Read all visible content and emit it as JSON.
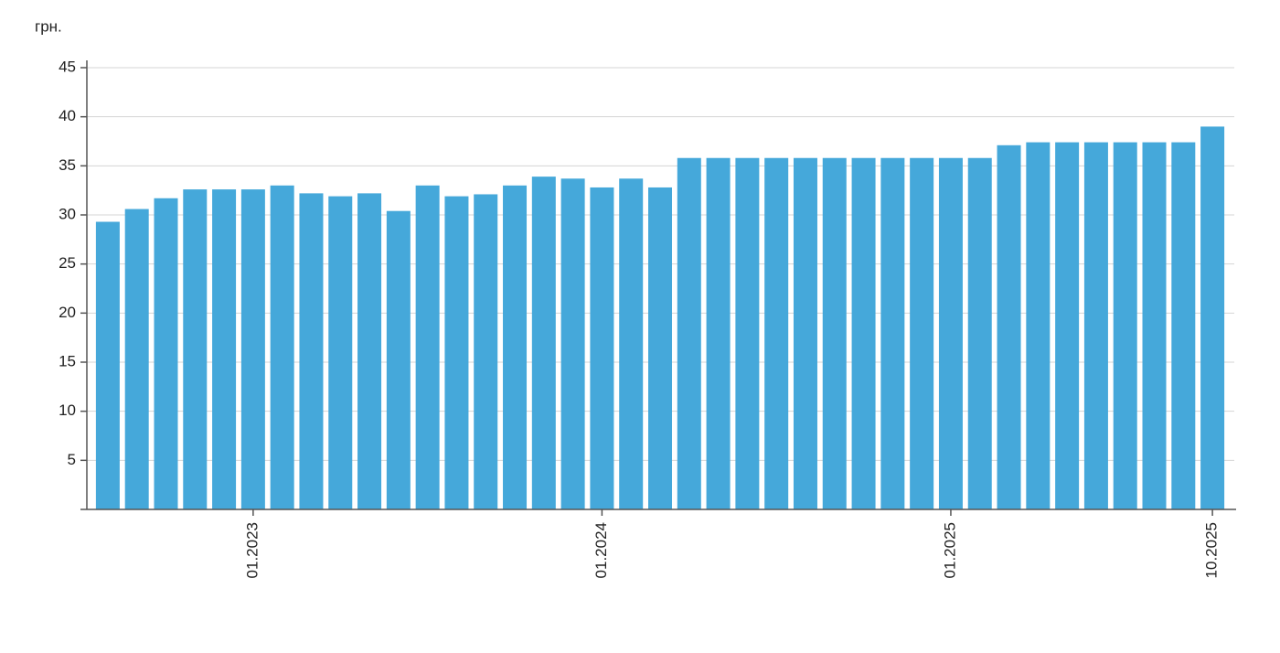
{
  "chart_data": {
    "type": "bar",
    "y_label": "грн.",
    "categories": [
      null,
      null,
      null,
      null,
      null,
      "01.2023",
      null,
      null,
      null,
      null,
      null,
      null,
      null,
      null,
      null,
      null,
      null,
      "01.2024",
      null,
      null,
      null,
      null,
      null,
      null,
      null,
      null,
      null,
      null,
      null,
      "01.2025",
      null,
      null,
      null,
      null,
      null,
      null,
      null,
      null,
      "10.2025"
    ],
    "values": [
      29.3,
      30.6,
      31.7,
      32.6,
      32.6,
      32.6,
      33.0,
      32.2,
      31.9,
      32.2,
      30.4,
      33.0,
      31.9,
      32.1,
      33.0,
      33.9,
      33.7,
      32.8,
      33.7,
      32.8,
      35.8,
      35.8,
      35.8,
      35.8,
      35.8,
      35.8,
      35.8,
      35.8,
      35.8,
      35.8,
      35.8,
      37.1,
      37.4,
      37.4,
      37.4,
      37.4,
      37.4,
      37.4,
      39.0
    ],
    "color": "#45a8da",
    "ylim": [
      0,
      45
    ],
    "yticks": [
      5,
      10,
      15,
      20,
      25,
      30,
      35,
      40,
      45
    ],
    "grid": true
  }
}
